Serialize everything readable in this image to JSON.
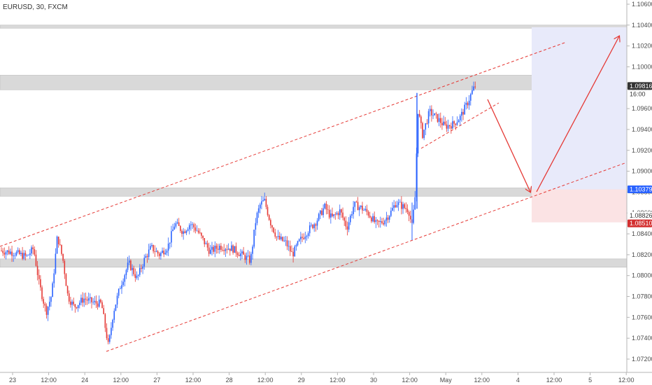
{
  "chart_data": {
    "type": "candlestick",
    "title": "EURUSD, 30, FXCM",
    "y_axis": {
      "side": "right",
      "ticks": [
        "1.10600",
        "1.10400",
        "1.10200",
        "1.10000",
        "1.09800",
        "1.09600",
        "1.09400",
        "1.09200",
        "1.09000",
        "1.08800",
        "1.08600",
        "1.08400",
        "1.08200",
        "1.08000",
        "1.07800",
        "1.07600",
        "1.07400",
        "1.07200"
      ]
    },
    "x_axis": {
      "ticks": [
        "23",
        "12:00",
        "24",
        "12:00",
        "27",
        "12:00",
        "28",
        "12:00",
        "29",
        "12:00",
        "30",
        "12:00",
        "May",
        "12:00",
        "4",
        "12:00",
        "5",
        "12:00"
      ]
    },
    "price_badges": {
      "current_price": "1.09816",
      "countdown": "16:00",
      "level_blue": "1.10379",
      "level_a": "1.08826",
      "level_red": "1.08510"
    },
    "colors": {
      "up": "#2962ff",
      "down": "#e53935",
      "channel": "#e53935",
      "arrow": "#e53935",
      "zone": "#d9d9d9",
      "target_box": "#e8eafa",
      "stop_box": "#fbe3e4",
      "blue_badge": "#2962ff",
      "red_badge": "#d32f2f",
      "dark_badge": "#333333"
    },
    "grid": false
  }
}
